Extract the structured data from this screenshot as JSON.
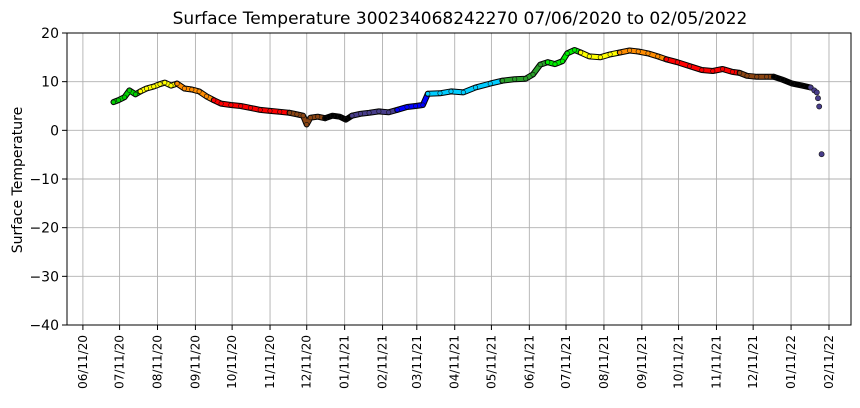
{
  "chart_data": {
    "type": "scatter",
    "title": "Surface Temperature 300234068242270  07/06/2020 to 02/05/2022",
    "xlabel": "",
    "ylabel": "Surface Temperature",
    "ylim": [
      -40,
      20
    ],
    "xlim": [
      "2020-05-29",
      "2022-03-01"
    ],
    "grid": true,
    "y_ticks": [
      {
        "value": 20,
        "label": "20"
      },
      {
        "value": 10,
        "label": "10"
      },
      {
        "value": 0,
        "label": "0"
      },
      {
        "value": -10,
        "label": "−10"
      },
      {
        "value": -20,
        "label": "−20"
      },
      {
        "value": -30,
        "label": "−30"
      },
      {
        "value": -40,
        "label": "−40"
      }
    ],
    "x_ticks": [
      {
        "date": "2020-06-11",
        "label": "06/11/20"
      },
      {
        "date": "2020-07-11",
        "label": "07/11/20"
      },
      {
        "date": "2020-08-11",
        "label": "08/11/20"
      },
      {
        "date": "2020-09-11",
        "label": "09/11/20"
      },
      {
        "date": "2020-10-11",
        "label": "10/11/20"
      },
      {
        "date": "2020-11-11",
        "label": "11/11/20"
      },
      {
        "date": "2020-12-11",
        "label": "12/11/20"
      },
      {
        "date": "2021-01-11",
        "label": "01/11/21"
      },
      {
        "date": "2021-02-11",
        "label": "02/11/21"
      },
      {
        "date": "2021-03-11",
        "label": "03/11/21"
      },
      {
        "date": "2021-04-11",
        "label": "04/11/21"
      },
      {
        "date": "2021-05-11",
        "label": "05/11/21"
      },
      {
        "date": "2021-06-11",
        "label": "06/11/21"
      },
      {
        "date": "2021-07-11",
        "label": "07/11/21"
      },
      {
        "date": "2021-08-11",
        "label": "08/11/21"
      },
      {
        "date": "2021-09-11",
        "label": "09/11/21"
      },
      {
        "date": "2021-10-11",
        "label": "10/11/21"
      },
      {
        "date": "2021-11-11",
        "label": "11/11/21"
      },
      {
        "date": "2021-12-11",
        "label": "12/11/21"
      },
      {
        "date": "2022-01-11",
        "label": "01/11/22"
      },
      {
        "date": "2022-02-11",
        "label": "02/11/22"
      }
    ],
    "series": [
      {
        "color": "#00d000",
        "points": [
          [
            "2020-07-06",
            5.8
          ],
          [
            "2020-07-10",
            6.2
          ],
          [
            "2020-07-15",
            6.8
          ],
          [
            "2020-07-19",
            8.2
          ],
          [
            "2020-07-24",
            7.4
          ],
          [
            "2020-07-28",
            8.0
          ]
        ]
      },
      {
        "color": "#ffff00",
        "points": [
          [
            "2020-07-28",
            8.0
          ],
          [
            "2020-08-02",
            8.6
          ],
          [
            "2020-08-08",
            9.0
          ],
          [
            "2020-08-13",
            9.5
          ],
          [
            "2020-08-17",
            9.8
          ],
          [
            "2020-08-22",
            9.2
          ],
          [
            "2020-08-27",
            9.6
          ]
        ]
      },
      {
        "color": "#ff8c00",
        "points": [
          [
            "2020-08-27",
            9.6
          ],
          [
            "2020-09-02",
            8.6
          ],
          [
            "2020-09-08",
            8.4
          ],
          [
            "2020-09-14",
            8.0
          ],
          [
            "2020-09-20",
            7.0
          ],
          [
            "2020-09-26",
            6.2
          ]
        ]
      },
      {
        "color": "#ff0000",
        "points": [
          [
            "2020-09-26",
            6.2
          ],
          [
            "2020-10-02",
            5.5
          ],
          [
            "2020-10-10",
            5.2
          ],
          [
            "2020-10-18",
            5.0
          ],
          [
            "2020-10-26",
            4.6
          ],
          [
            "2020-11-03",
            4.2
          ],
          [
            "2020-11-11",
            4.0
          ],
          [
            "2020-11-19",
            3.8
          ],
          [
            "2020-11-27",
            3.6
          ]
        ]
      },
      {
        "color": "#8b4513",
        "points": [
          [
            "2020-11-27",
            3.6
          ],
          [
            "2020-12-03",
            3.3
          ],
          [
            "2020-12-08",
            3.0
          ],
          [
            "2020-12-11",
            1.2
          ],
          [
            "2020-12-14",
            2.6
          ],
          [
            "2020-12-20",
            2.8
          ],
          [
            "2020-12-26",
            2.5
          ]
        ]
      },
      {
        "color": "#000000",
        "points": [
          [
            "2020-12-26",
            2.5
          ],
          [
            "2021-01-01",
            3.0
          ],
          [
            "2021-01-07",
            2.8
          ],
          [
            "2021-01-12",
            2.2
          ],
          [
            "2021-01-17",
            3.0
          ]
        ]
      },
      {
        "color": "#483d8b",
        "points": [
          [
            "2021-01-17",
            3.0
          ],
          [
            "2021-01-24",
            3.4
          ],
          [
            "2021-01-31",
            3.6
          ],
          [
            "2021-02-08",
            3.9
          ],
          [
            "2021-02-16",
            3.7
          ],
          [
            "2021-02-23",
            4.2
          ]
        ]
      },
      {
        "color": "#0000ff",
        "points": [
          [
            "2021-02-23",
            4.2
          ],
          [
            "2021-03-03",
            4.8
          ],
          [
            "2021-03-10",
            5.0
          ],
          [
            "2021-03-16",
            5.2
          ],
          [
            "2021-03-20",
            7.5
          ]
        ]
      },
      {
        "color": "#00ccff",
        "points": [
          [
            "2021-03-20",
            7.5
          ],
          [
            "2021-03-30",
            7.6
          ],
          [
            "2021-04-08",
            8.0
          ],
          [
            "2021-04-18",
            7.8
          ],
          [
            "2021-04-28",
            8.8
          ],
          [
            "2021-05-10",
            9.6
          ],
          [
            "2021-05-20",
            10.2
          ]
        ]
      },
      {
        "color": "#2aa02a",
        "points": [
          [
            "2021-05-20",
            10.2
          ],
          [
            "2021-05-30",
            10.5
          ],
          [
            "2021-06-08",
            10.6
          ],
          [
            "2021-06-14",
            11.5
          ],
          [
            "2021-06-20",
            13.5
          ],
          [
            "2021-06-26",
            14.0
          ]
        ]
      },
      {
        "color": "#00ee00",
        "points": [
          [
            "2021-06-26",
            14.0
          ],
          [
            "2021-07-02",
            13.6
          ],
          [
            "2021-07-08",
            14.2
          ],
          [
            "2021-07-12",
            15.8
          ],
          [
            "2021-07-18",
            16.5
          ],
          [
            "2021-07-23",
            16.0
          ]
        ]
      },
      {
        "color": "#ffff00",
        "points": [
          [
            "2021-07-23",
            16.0
          ],
          [
            "2021-07-30",
            15.2
          ],
          [
            "2021-08-08",
            15.0
          ],
          [
            "2021-08-16",
            15.6
          ],
          [
            "2021-08-24",
            16.0
          ]
        ]
      },
      {
        "color": "#ff8c00",
        "points": [
          [
            "2021-08-24",
            16.0
          ],
          [
            "2021-09-01",
            16.4
          ],
          [
            "2021-09-08",
            16.2
          ],
          [
            "2021-09-16",
            15.8
          ],
          [
            "2021-09-24",
            15.2
          ],
          [
            "2021-10-01",
            14.6
          ]
        ]
      },
      {
        "color": "#ff0000",
        "points": [
          [
            "2021-10-01",
            14.6
          ],
          [
            "2021-10-10",
            14.0
          ],
          [
            "2021-10-20",
            13.2
          ],
          [
            "2021-10-30",
            12.4
          ],
          [
            "2021-11-08",
            12.2
          ],
          [
            "2021-11-16",
            12.6
          ],
          [
            "2021-11-24",
            12.0
          ],
          [
            "2021-11-30",
            11.8
          ]
        ]
      },
      {
        "color": "#8b4513",
        "points": [
          [
            "2021-11-30",
            11.8
          ],
          [
            "2021-12-06",
            11.2
          ],
          [
            "2021-12-14",
            11.0
          ],
          [
            "2021-12-22",
            11.0
          ],
          [
            "2021-12-28",
            11.0
          ]
        ]
      },
      {
        "color": "#000000",
        "points": [
          [
            "2021-12-28",
            11.0
          ],
          [
            "2022-01-04",
            10.4
          ],
          [
            "2022-01-12",
            9.6
          ],
          [
            "2022-01-20",
            9.2
          ],
          [
            "2022-01-27",
            8.8
          ]
        ]
      },
      {
        "color": "#483d8b",
        "points": [
          [
            "2022-01-27",
            8.8
          ],
          [
            "2022-01-30",
            8.2
          ],
          [
            "2022-02-01",
            7.8
          ],
          [
            "2022-02-02",
            6.6
          ],
          [
            "2022-02-03",
            4.9
          ],
          [
            "2022-02-05",
            -4.9
          ]
        ]
      }
    ]
  }
}
